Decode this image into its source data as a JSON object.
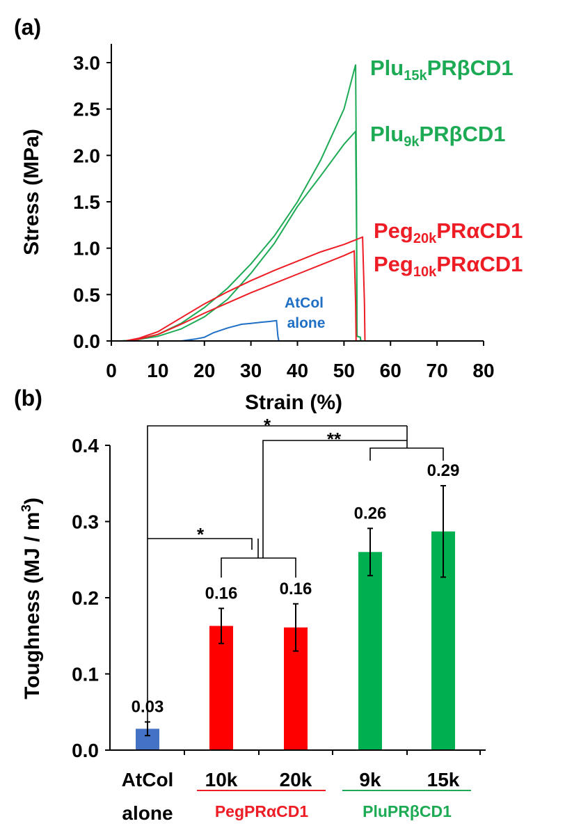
{
  "chart_data": [
    {
      "panel": "(a)",
      "type": "line",
      "xlabel": "Strain (%)",
      "ylabel": "Stress (MPa)",
      "xlim": [
        0,
        80
      ],
      "ylim": [
        0,
        3.0
      ],
      "xticks": [
        "0",
        "10",
        "20",
        "30",
        "40",
        "50",
        "60",
        "70",
        "80"
      ],
      "yticks": [
        "0.0",
        "0.5",
        "1.0",
        "1.5",
        "2.0",
        "2.5",
        "3.0"
      ],
      "grid": false,
      "series": [
        {
          "label_main": "Plu",
          "label_sub": "15k",
          "label_rest": "PRβCD1",
          "color": "#1daa55",
          "points": [
            [
              2,
              0
            ],
            [
              5,
              0.01
            ],
            [
              10,
              0.07
            ],
            [
              15,
              0.19
            ],
            [
              20,
              0.36
            ],
            [
              25,
              0.57
            ],
            [
              30,
              0.83
            ],
            [
              35,
              1.13
            ],
            [
              40,
              1.5
            ],
            [
              45,
              1.95
            ],
            [
              50,
              2.5
            ],
            [
              52.5,
              2.98
            ],
            [
              52.7,
              1.5
            ],
            [
              52.8,
              0.05
            ],
            [
              53.5,
              0.04
            ],
            [
              53.6,
              0
            ]
          ]
        },
        {
          "label_main": "Plu",
          "label_sub": "9k",
          "label_rest": "PRβCD1",
          "color": "#1daa55",
          "points": [
            [
              2,
              0
            ],
            [
              5,
              0.01
            ],
            [
              10,
              0.05
            ],
            [
              15,
              0.13
            ],
            [
              20,
              0.26
            ],
            [
              25,
              0.45
            ],
            [
              30,
              0.73
            ],
            [
              35,
              1.05
            ],
            [
              40,
              1.45
            ],
            [
              45,
              1.78
            ],
            [
              50,
              2.12
            ],
            [
              52.5,
              2.26
            ],
            [
              52.7,
              1.2
            ],
            [
              52.8,
              0.05
            ],
            [
              53.5,
              0.04
            ],
            [
              53.6,
              0
            ]
          ]
        },
        {
          "label_main": "Peg",
          "label_sub": "20k",
          "label_rest": "PRαCD1",
          "color": "#ee1c24",
          "points": [
            [
              3,
              0
            ],
            [
              6,
              0.03
            ],
            [
              10,
              0.1
            ],
            [
              15,
              0.25
            ],
            [
              20,
              0.4
            ],
            [
              25,
              0.53
            ],
            [
              30,
              0.65
            ],
            [
              35,
              0.76
            ],
            [
              40,
              0.86
            ],
            [
              45,
              0.96
            ],
            [
              50,
              1.04
            ],
            [
              54,
              1.12
            ],
            [
              54.4,
              0.4
            ],
            [
              54.5,
              0
            ]
          ]
        },
        {
          "label_main": "Peg",
          "label_sub": "10k",
          "label_rest": "PRαCD1",
          "color": "#ee1c24",
          "points": [
            [
              3,
              0
            ],
            [
              6,
              0.02
            ],
            [
              10,
              0.07
            ],
            [
              15,
              0.18
            ],
            [
              20,
              0.3
            ],
            [
              25,
              0.41
            ],
            [
              30,
              0.52
            ],
            [
              35,
              0.62
            ],
            [
              40,
              0.72
            ],
            [
              45,
              0.82
            ],
            [
              50,
              0.92
            ],
            [
              52.2,
              0.97
            ],
            [
              52.5,
              0.4
            ],
            [
              52.6,
              0
            ]
          ]
        },
        {
          "label_main": "AtCol",
          "label_line2": "alone",
          "color": "#1f6fc5",
          "points": [
            [
              9,
              0
            ],
            [
              15,
              0.0
            ],
            [
              18,
              0.02
            ],
            [
              20,
              0.04
            ],
            [
              22,
              0.09
            ],
            [
              25,
              0.14
            ],
            [
              28,
              0.18
            ],
            [
              30,
              0.19
            ],
            [
              32,
              0.2
            ],
            [
              34,
              0.21
            ],
            [
              35.5,
              0.22
            ],
            [
              35.8,
              0.05
            ],
            [
              36,
              0
            ]
          ]
        }
      ]
    },
    {
      "panel": "(b)",
      "type": "bar",
      "ylabel_main": "Toughness (MJ / m",
      "ylabel_sup": "3",
      "ylabel_end": ")",
      "ylim": [
        0,
        0.4
      ],
      "yticks": [
        "0.0",
        "0.1",
        "0.2",
        "0.3",
        "0.4"
      ],
      "categories": [
        "AtCol",
        "10k",
        "20k",
        "9k",
        "15k"
      ],
      "category_line2": "alone",
      "values": [
        0.028,
        0.163,
        0.161,
        0.26,
        0.287
      ],
      "errors": [
        0.009,
        0.023,
        0.031,
        0.031,
        0.06
      ],
      "value_labels": [
        "0.03",
        "0.16",
        "0.16",
        "0.26",
        "0.29"
      ],
      "colors": [
        "#4472c4",
        "#ff0000",
        "#ff0000",
        "#00b050",
        "#00b050"
      ],
      "groups": [
        {
          "label": "PegPRαCD1",
          "color": "#ee1c24"
        },
        {
          "label": "PluPRβCD1",
          "color": "#1daa55"
        }
      ],
      "significance": [
        "*",
        "**",
        "*"
      ]
    }
  ]
}
